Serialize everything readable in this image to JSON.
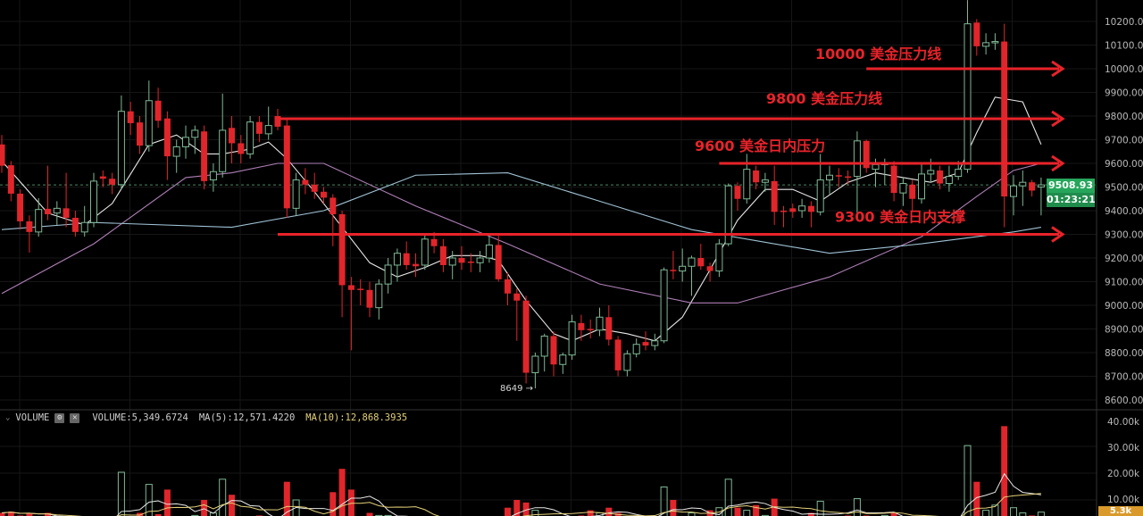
{
  "chart_data": {
    "type": "candlestick",
    "price_axis": {
      "ticks": [
        "10200.00",
        "10100.00",
        "10000.00",
        "9900.00",
        "9800.00",
        "9700.00",
        "9600.00",
        "9500.00",
        "9400.00",
        "9300.00",
        "9200.00",
        "9100.00",
        "9000.00",
        "8900.00",
        "8800.00",
        "8700.00",
        "8600.00"
      ],
      "ylim": [
        8560,
        10290
      ]
    },
    "volume_axis": {
      "ticks": [
        "40.00k",
        "30.00k",
        "20.00k",
        "10.00k"
      ],
      "unit": "k"
    },
    "last_price": "9508.93",
    "countdown": "01:23:21",
    "last_volume_tag": "5.3k",
    "low_marker": "8649 →",
    "candles_ohlc": [
      [
        9680,
        9720,
        9560,
        9590
      ],
      [
        9592,
        9610,
        9440,
        9472
      ],
      [
        9472,
        9490,
        9320,
        9355
      ],
      [
        9355,
        9380,
        9223,
        9310
      ],
      [
        9310,
        9453,
        9290,
        9405
      ],
      [
        9408,
        9590,
        9360,
        9385
      ],
      [
        9390,
        9440,
        9340,
        9410
      ],
      [
        9410,
        9560,
        9330,
        9370
      ],
      [
        9370,
        9400,
        9290,
        9310
      ],
      [
        9310,
        9420,
        9290,
        9350
      ],
      [
        9350,
        9560,
        9330,
        9525
      ],
      [
        9545,
        9570,
        9500,
        9535
      ],
      [
        9535,
        9560,
        9470,
        9510
      ],
      [
        9510,
        9887,
        9490,
        9820
      ],
      [
        9820,
        9860,
        9720,
        9770
      ],
      [
        9773,
        9800,
        9640,
        9675
      ],
      [
        9675,
        9950,
        9650,
        9865
      ],
      [
        9865,
        9920,
        9750,
        9780
      ],
      [
        9790,
        9820,
        9530,
        9630
      ],
      [
        9630,
        9700,
        9560,
        9670
      ],
      [
        9670,
        9760,
        9620,
        9710
      ],
      [
        9710,
        9760,
        9640,
        9740
      ],
      [
        9735,
        9760,
        9490,
        9525
      ],
      [
        9530,
        9600,
        9480,
        9565
      ],
      [
        9565,
        9895,
        9540,
        9740
      ],
      [
        9750,
        9800,
        9600,
        9685
      ],
      [
        9685,
        9720,
        9600,
        9640
      ],
      [
        9640,
        9800,
        9620,
        9775
      ],
      [
        9775,
        9800,
        9690,
        9725
      ],
      [
        9725,
        9840,
        9700,
        9760
      ],
      [
        9800,
        9830,
        9740,
        9755
      ],
      [
        9760,
        9790,
        9370,
        9410
      ],
      [
        9410,
        9560,
        9380,
        9530
      ],
      [
        9530,
        9580,
        9470,
        9510
      ],
      [
        9510,
        9560,
        9450,
        9480
      ],
      [
        9480,
        9500,
        9430,
        9455
      ],
      [
        9455,
        9470,
        9250,
        9385
      ],
      [
        9385,
        9400,
        8950,
        9085
      ],
      [
        9085,
        9120,
        8810,
        9065
      ],
      [
        9070,
        9110,
        9000,
        9065
      ],
      [
        9065,
        9100,
        8950,
        8990
      ],
      [
        8990,
        9110,
        8940,
        9090
      ],
      [
        9090,
        9200,
        9050,
        9170
      ],
      [
        9170,
        9240,
        9100,
        9220
      ],
      [
        9220,
        9270,
        9150,
        9170
      ],
      [
        9175,
        9220,
        9120,
        9165
      ],
      [
        9170,
        9300,
        9150,
        9280
      ],
      [
        9280,
        9310,
        9220,
        9250
      ],
      [
        9250,
        9280,
        9140,
        9170
      ],
      [
        9170,
        9230,
        9110,
        9200
      ],
      [
        9200,
        9250,
        9150,
        9180
      ],
      [
        9185,
        9220,
        9140,
        9180
      ],
      [
        9180,
        9230,
        9140,
        9200
      ],
      [
        9200,
        9300,
        9180,
        9255
      ],
      [
        9255,
        9300,
        9100,
        9110
      ],
      [
        9110,
        9140,
        9000,
        9050
      ],
      [
        9050,
        9070,
        8850,
        9020
      ],
      [
        9020,
        9040,
        8670,
        8715
      ],
      [
        8715,
        8800,
        8649,
        8785
      ],
      [
        8785,
        8880,
        8720,
        8870
      ],
      [
        8870,
        8890,
        8700,
        8750
      ],
      [
        8750,
        8800,
        8710,
        8790
      ],
      [
        8790,
        8960,
        8770,
        8930
      ],
      [
        8925,
        8960,
        8850,
        8895
      ],
      [
        8900,
        8940,
        8860,
        8895
      ],
      [
        8895,
        8990,
        8870,
        8950
      ],
      [
        8950,
        9000,
        8830,
        8855
      ],
      [
        8855,
        8870,
        8700,
        8725
      ],
      [
        8725,
        8810,
        8700,
        8795
      ],
      [
        8795,
        8860,
        8780,
        8835
      ],
      [
        8845,
        8890,
        8810,
        8830
      ],
      [
        8830,
        8880,
        8810,
        8850
      ],
      [
        8850,
        9160,
        8840,
        9150
      ],
      [
        9150,
        9230,
        9110,
        9145
      ],
      [
        9145,
        9240,
        9100,
        9165
      ],
      [
        9165,
        9210,
        9040,
        9200
      ],
      [
        9200,
        9260,
        9150,
        9165
      ],
      [
        9165,
        9180,
        9100,
        9145
      ],
      [
        9145,
        9280,
        9120,
        9260
      ],
      [
        9260,
        9515,
        9250,
        9505
      ],
      [
        9505,
        9520,
        9400,
        9450
      ],
      [
        9450,
        9640,
        9430,
        9575
      ],
      [
        9570,
        9590,
        9490,
        9520
      ],
      [
        9520,
        9560,
        9480,
        9530
      ],
      [
        9525,
        9590,
        9340,
        9395
      ],
      [
        9400,
        9420,
        9330,
        9395
      ],
      [
        9410,
        9430,
        9370,
        9395
      ],
      [
        9400,
        9450,
        9370,
        9420
      ],
      [
        9420,
        9440,
        9330,
        9395
      ],
      [
        9395,
        9640,
        9380,
        9530
      ],
      [
        9530,
        9590,
        9470,
        9550
      ],
      [
        9550,
        9580,
        9500,
        9545
      ],
      [
        9545,
        9570,
        9510,
        9540
      ],
      [
        9545,
        9735,
        9380,
        9695
      ],
      [
        9695,
        9700,
        9560,
        9580
      ],
      [
        9575,
        9620,
        9500,
        9595
      ],
      [
        9595,
        9620,
        9510,
        9600
      ],
      [
        9590,
        9610,
        9440,
        9475
      ],
      [
        9475,
        9540,
        9420,
        9515
      ],
      [
        9510,
        9530,
        9400,
        9450
      ],
      [
        9450,
        9600,
        9430,
        9555
      ],
      [
        9555,
        9620,
        9520,
        9570
      ],
      [
        9570,
        9590,
        9490,
        9515
      ],
      [
        9515,
        9590,
        9480,
        9545
      ],
      [
        9545,
        9610,
        9530,
        9575
      ],
      [
        9575,
        10300,
        9560,
        10190
      ],
      [
        10195,
        10210,
        10055,
        10095
      ],
      [
        10095,
        10150,
        10060,
        10110
      ],
      [
        10110,
        10150,
        10080,
        10115
      ],
      [
        10115,
        10190,
        9330,
        9460
      ],
      [
        9460,
        9550,
        9380,
        9505
      ],
      [
        9505,
        9570,
        9420,
        9520
      ],
      [
        9520,
        9530,
        9460,
        9485
      ],
      [
        9500,
        9540,
        9380,
        9509
      ]
    ],
    "volumes_k": [
      5,
      5.5,
      4,
      5,
      3.5,
      5,
      1.5,
      3,
      2,
      1,
      2.5,
      1.5,
      2,
      20.7,
      2,
      5,
      16,
      4.5,
      14,
      3,
      2,
      4,
      10,
      5,
      18,
      12,
      3,
      1,
      4,
      3,
      1.5,
      17,
      10,
      2,
      3,
      1.5,
      13,
      22,
      14,
      3,
      5,
      4,
      4,
      3,
      2.5,
      3,
      2,
      3,
      2,
      1.5,
      1.5,
      1.5,
      2,
      1.5,
      3,
      7,
      10,
      9,
      6,
      3,
      3,
      2,
      3,
      4,
      6,
      5,
      7,
      5,
      3,
      2,
      1.5,
      3,
      15,
      10,
      1.5,
      5,
      2,
      6,
      7,
      18,
      7,
      6,
      8,
      4,
      10.5,
      3,
      3,
      2,
      5,
      9.5,
      3,
      3.5,
      4,
      10.5,
      4,
      3,
      4,
      5,
      2,
      2,
      2,
      2,
      1.5,
      2,
      3,
      31,
      17,
      6,
      8,
      38.5,
      7,
      5,
      4,
      5.3
    ],
    "moving_averages": [
      {
        "color": "#e8e8e8",
        "points": [
          [
            0,
            9610
          ],
          [
            5,
            9390
          ],
          [
            9,
            9340
          ],
          [
            12,
            9430
          ],
          [
            16,
            9680
          ],
          [
            19,
            9720
          ],
          [
            22,
            9640
          ],
          [
            24,
            9640
          ],
          [
            27,
            9660
          ],
          [
            29,
            9690
          ],
          [
            31,
            9620
          ],
          [
            34,
            9480
          ],
          [
            37,
            9330
          ],
          [
            40,
            9180
          ],
          [
            43,
            9120
          ],
          [
            46,
            9160
          ],
          [
            49,
            9210
          ],
          [
            52,
            9210
          ],
          [
            54,
            9190
          ],
          [
            57,
            9020
          ],
          [
            60,
            8880
          ],
          [
            62,
            8850
          ],
          [
            65,
            8900
          ],
          [
            68,
            8880
          ],
          [
            71,
            8850
          ],
          [
            74,
            8950
          ],
          [
            77,
            9150
          ],
          [
            80,
            9360
          ],
          [
            83,
            9490
          ],
          [
            86,
            9490
          ],
          [
            89,
            9440
          ],
          [
            92,
            9520
          ],
          [
            95,
            9560
          ],
          [
            98,
            9540
          ],
          [
            101,
            9520
          ],
          [
            104,
            9560
          ],
          [
            106,
            9730
          ],
          [
            108,
            9880
          ],
          [
            111,
            9860
          ],
          [
            113,
            9680
          ]
        ]
      },
      {
        "color": "#b07fb8",
        "points": [
          [
            0,
            9050
          ],
          [
            10,
            9260
          ],
          [
            20,
            9540
          ],
          [
            25,
            9560
          ],
          [
            30,
            9600
          ],
          [
            35,
            9600
          ],
          [
            45,
            9420
          ],
          [
            55,
            9260
          ],
          [
            65,
            9090
          ],
          [
            75,
            9010
          ],
          [
            80,
            9010
          ],
          [
            90,
            9120
          ],
          [
            100,
            9290
          ],
          [
            106,
            9460
          ],
          [
            110,
            9570
          ],
          [
            113,
            9600
          ]
        ]
      },
      {
        "color": "#9fc3d6",
        "points": [
          [
            0,
            9320
          ],
          [
            10,
            9350
          ],
          [
            25,
            9330
          ],
          [
            35,
            9400
          ],
          [
            45,
            9550
          ],
          [
            55,
            9560
          ],
          [
            65,
            9440
          ],
          [
            75,
            9320
          ],
          [
            90,
            9220
          ],
          [
            100,
            9260
          ],
          [
            110,
            9310
          ],
          [
            113,
            9330
          ]
        ]
      }
    ],
    "annotations": [
      {
        "text": "10000 美金压力线",
        "price": 10000,
        "from_candle": 94
      },
      {
        "text": "9800 美金压力线",
        "price": 9800,
        "from_candle": 30
      },
      {
        "text": "9600 美金日内压力",
        "price": 9600,
        "from_candle": 78
      },
      {
        "text": "9300 美金日内支撑",
        "price": 9300,
        "from_candle": 30
      }
    ],
    "colors": {
      "up": "#7fb894",
      "down": "#e0262b",
      "annotation": "#e8232a",
      "price_tag": "#26a65b",
      "volume_tag": "#d99a2b",
      "vol_ma5": "#e8e8e8",
      "vol_ma10": "#e6d27a"
    }
  },
  "volume_header": {
    "title": "VOLUME",
    "volume": "VOLUME:5,349.6724",
    "ma5": "MA(5):12,571.4220",
    "ma10": "MA(10):12,868.3935"
  }
}
